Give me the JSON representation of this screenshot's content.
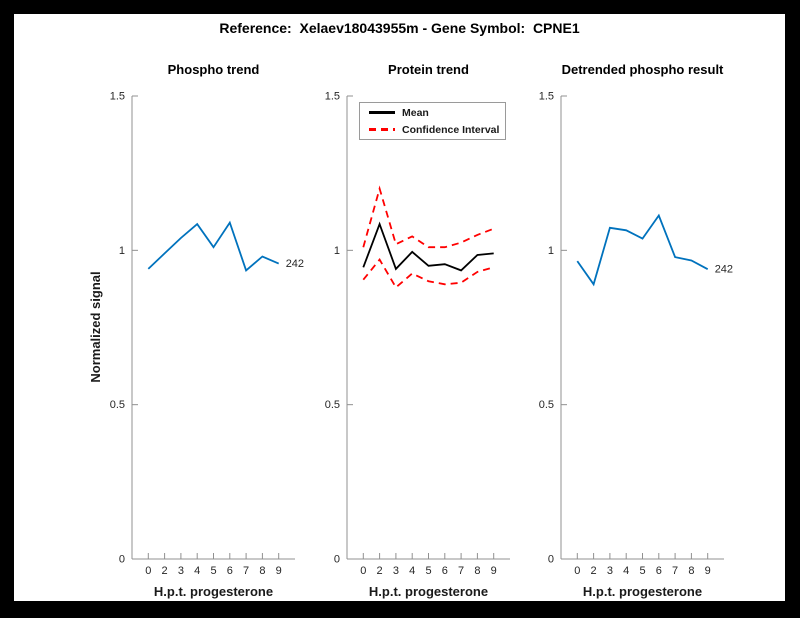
{
  "figure": {
    "suptitle": "Reference:  Xelaev18043955m - Gene Symbol:  CPNE1",
    "background_color": "#000000",
    "canvas_color": "#ffffff"
  },
  "colors": {
    "blue": "#0072BD",
    "red": "#ff0000",
    "black": "#000000",
    "axis": "#909090",
    "text": "#262626"
  },
  "legend": {
    "items": [
      {
        "label": "Mean",
        "color": "#000000",
        "style": "solid"
      },
      {
        "label": "Confidence Interval",
        "color": "#ff0000",
        "style": "dashed"
      }
    ]
  },
  "chart_data": [
    {
      "type": "line",
      "title": "Phospho trend",
      "xlabel": "H.p.t. progesterone",
      "ylabel": "Normalized signal",
      "x": [
        1,
        2,
        3,
        4,
        5,
        6,
        7,
        8,
        9
      ],
      "xticklabels": [
        "0",
        "2",
        "3",
        "4",
        "5",
        "6",
        "7",
        "8",
        "9"
      ],
      "xlim": [
        0,
        10
      ],
      "ylim": [
        0,
        1.5
      ],
      "yticks": [
        0,
        0.5,
        1,
        1.5
      ],
      "grid": false,
      "series": [
        {
          "name": "phospho-signal",
          "color": "#0072BD",
          "style": "solid",
          "values": [
            0.94,
            0.99,
            1.04,
            1.085,
            1.01,
            1.09,
            0.935,
            0.98,
            0.957
          ]
        }
      ],
      "end_label": "242"
    },
    {
      "type": "line",
      "title": "Protein trend",
      "xlabel": "H.p.t. progesterone",
      "ylabel": "",
      "x": [
        1,
        2,
        3,
        4,
        5,
        6,
        7,
        8,
        9
      ],
      "xticklabels": [
        "0",
        "2",
        "3",
        "4",
        "5",
        "6",
        "7",
        "8",
        "9"
      ],
      "xlim": [
        0,
        10
      ],
      "ylim": [
        0,
        1.5
      ],
      "yticks": [
        0,
        0.5,
        1,
        1.5
      ],
      "grid": false,
      "legend_position": "top-left",
      "series": [
        {
          "name": "mean",
          "color": "#000000",
          "style": "solid",
          "values": [
            0.945,
            1.085,
            0.94,
            0.995,
            0.95,
            0.955,
            0.935,
            0.985,
            0.99
          ]
        },
        {
          "name": "confidence-upper",
          "color": "#ff0000",
          "style": "dashed",
          "values": [
            1.01,
            1.2,
            1.02,
            1.045,
            1.01,
            1.01,
            1.025,
            1.05,
            1.07
          ]
        },
        {
          "name": "confidence-lower",
          "color": "#ff0000",
          "style": "dashed",
          "values": [
            0.905,
            0.97,
            0.88,
            0.925,
            0.9,
            0.89,
            0.895,
            0.93,
            0.945
          ]
        }
      ],
      "end_label": ""
    },
    {
      "type": "line",
      "title": "Detrended phospho result",
      "xlabel": "H.p.t. progesterone",
      "ylabel": "",
      "x": [
        1,
        2,
        3,
        4,
        5,
        6,
        7,
        8,
        9
      ],
      "xticklabels": [
        "0",
        "2",
        "3",
        "4",
        "5",
        "6",
        "7",
        "8",
        "9"
      ],
      "xlim": [
        0,
        10
      ],
      "ylim": [
        0,
        1.5
      ],
      "yticks": [
        0,
        0.5,
        1,
        1.5
      ],
      "grid": false,
      "series": [
        {
          "name": "detrended-phospho",
          "color": "#0072BD",
          "style": "solid",
          "values": [
            0.965,
            0.89,
            1.073,
            1.065,
            1.038,
            1.113,
            0.978,
            0.967,
            0.939
          ]
        }
      ],
      "end_label": "242"
    }
  ]
}
